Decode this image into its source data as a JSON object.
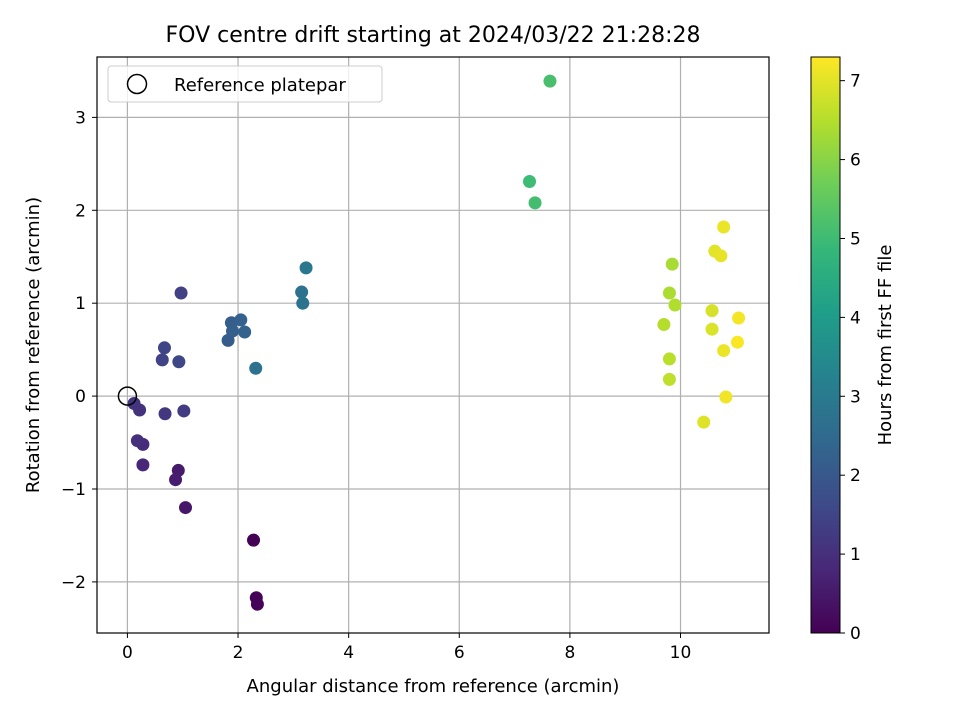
{
  "chart_data": {
    "type": "scatter",
    "title": "FOV centre drift starting at 2024/03/22 21:28:28",
    "xlabel": "Angular distance from reference (arcmin)",
    "ylabel": "Rotation from reference (arcmin)",
    "xlim": [
      -0.55,
      11.6
    ],
    "ylim": [
      -2.55,
      3.65
    ],
    "xticks": [
      0,
      2,
      4,
      6,
      8,
      10
    ],
    "yticks": [
      -2,
      -1,
      0,
      1,
      2,
      3
    ],
    "xtick_labels": [
      "0",
      "2",
      "4",
      "6",
      "8",
      "10"
    ],
    "ytick_labels": [
      "−2",
      "−1",
      "0",
      "1",
      "2",
      "3"
    ],
    "grid": true,
    "legend": {
      "placement": "top-left",
      "entries": [
        {
          "label": "Reference platepar",
          "marker": "open-circle",
          "color": "#000000"
        }
      ]
    },
    "reference_point": {
      "x": 0,
      "y": 0
    },
    "colorbar": {
      "label": "Hours from first FF file",
      "colormap": "viridis",
      "vmin": 0,
      "vmax": 7.3,
      "ticks": [
        0,
        1,
        2,
        3,
        4,
        5,
        6,
        7
      ],
      "tick_labels": [
        "0",
        "1",
        "2",
        "3",
        "4",
        "5",
        "6",
        "7"
      ],
      "stops": [
        "#440154",
        "#482878",
        "#3e4a89",
        "#31688e",
        "#26828e",
        "#1f9e89",
        "#35b779",
        "#6dcd59",
        "#b4de2c",
        "#fde725"
      ]
    },
    "points": [
      {
        "x": 2.28,
        "y": -1.55,
        "c": 0.02
      },
      {
        "x": 2.33,
        "y": -2.17,
        "c": 0.04
      },
      {
        "x": 2.35,
        "y": -2.24,
        "c": 0.06
      },
      {
        "x": 1.05,
        "y": -1.2,
        "c": 0.45
      },
      {
        "x": 0.92,
        "y": -0.8,
        "c": 0.55
      },
      {
        "x": 0.87,
        "y": -0.9,
        "c": 0.6
      },
      {
        "x": 0.28,
        "y": -0.74,
        "c": 0.8
      },
      {
        "x": 0.28,
        "y": -0.52,
        "c": 0.9
      },
      {
        "x": 0.18,
        "y": -0.48,
        "c": 1.0
      },
      {
        "x": 0.22,
        "y": -0.15,
        "c": 1.05
      },
      {
        "x": 0.12,
        "y": -0.08,
        "c": 1.1
      },
      {
        "x": 0.68,
        "y": -0.19,
        "c": 1.2
      },
      {
        "x": 1.02,
        "y": -0.16,
        "c": 1.3
      },
      {
        "x": 0.97,
        "y": 1.11,
        "c": 1.4
      },
      {
        "x": 0.63,
        "y": 0.39,
        "c": 1.45
      },
      {
        "x": 0.67,
        "y": 0.52,
        "c": 1.5
      },
      {
        "x": 0.93,
        "y": 0.37,
        "c": 1.55
      },
      {
        "x": 1.82,
        "y": 0.6,
        "c": 2.1
      },
      {
        "x": 1.88,
        "y": 0.79,
        "c": 2.15
      },
      {
        "x": 1.9,
        "y": 0.7,
        "c": 2.2
      },
      {
        "x": 2.05,
        "y": 0.82,
        "c": 2.25
      },
      {
        "x": 2.12,
        "y": 0.69,
        "c": 2.3
      },
      {
        "x": 2.32,
        "y": 0.3,
        "c": 2.7
      },
      {
        "x": 3.15,
        "y": 1.12,
        "c": 2.75
      },
      {
        "x": 3.17,
        "y": 1.0,
        "c": 2.8
      },
      {
        "x": 3.23,
        "y": 1.38,
        "c": 2.9
      },
      {
        "x": 7.27,
        "y": 2.31,
        "c": 5.0
      },
      {
        "x": 7.37,
        "y": 2.08,
        "c": 5.1
      },
      {
        "x": 7.64,
        "y": 3.39,
        "c": 5.15
      },
      {
        "x": 9.85,
        "y": 1.42,
        "c": 6.35
      },
      {
        "x": 9.8,
        "y": 1.11,
        "c": 6.4
      },
      {
        "x": 9.9,
        "y": 0.98,
        "c": 6.45
      },
      {
        "x": 9.7,
        "y": 0.77,
        "c": 6.5
      },
      {
        "x": 9.8,
        "y": 0.4,
        "c": 6.55
      },
      {
        "x": 9.8,
        "y": 0.18,
        "c": 6.6
      },
      {
        "x": 10.57,
        "y": 0.92,
        "c": 6.85
      },
      {
        "x": 10.57,
        "y": 0.72,
        "c": 6.9
      },
      {
        "x": 10.42,
        "y": -0.28,
        "c": 6.95
      },
      {
        "x": 10.62,
        "y": 1.56,
        "c": 7.0
      },
      {
        "x": 10.73,
        "y": 1.51,
        "c": 7.05
      },
      {
        "x": 10.78,
        "y": 1.82,
        "c": 7.1
      },
      {
        "x": 10.78,
        "y": 0.49,
        "c": 7.1
      },
      {
        "x": 10.82,
        "y": -0.01,
        "c": 7.15
      },
      {
        "x": 11.05,
        "y": 0.84,
        "c": 7.2
      },
      {
        "x": 11.03,
        "y": 0.58,
        "c": 7.25
      }
    ]
  }
}
